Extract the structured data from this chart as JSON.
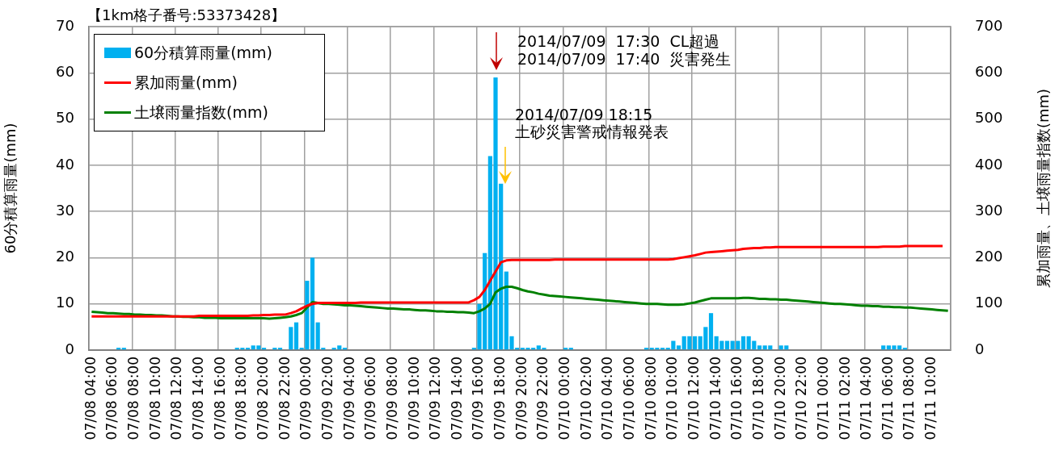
{
  "chart_data": {
    "type": "bar",
    "title": "【1km格子番号:53373428】",
    "ylabel": "60分積算雨量(mm)",
    "y2label": "累加雨量、土壌雨量指数(mm)",
    "annotations": [
      "2014/07/09  17:30  CL超過",
      "2014/07/09  17:40  災害発生",
      "2014/07/09 18:15",
      "土砂災害警戒情報発表"
    ],
    "categories": [
      "07/08 04:00",
      null,
      null,
      null,
      "07/08 06:00",
      null,
      null,
      null,
      "07/08 08:00",
      null,
      null,
      null,
      "07/08 10:00",
      null,
      null,
      null,
      "07/08 12:00",
      null,
      null,
      null,
      "07/08 14:00",
      null,
      null,
      null,
      "07/08 16:00",
      null,
      null,
      null,
      "07/08 18:00",
      null,
      null,
      null,
      "07/08 20:00",
      null,
      null,
      null,
      "07/08 22:00",
      null,
      null,
      null,
      "07/09 00:00",
      null,
      null,
      null,
      "07/09 02:00",
      null,
      null,
      null,
      "07/09 04:00",
      null,
      null,
      null,
      "07/09 06:00",
      null,
      null,
      null,
      "07/09 08:00",
      null,
      null,
      null,
      "07/09 10:00",
      null,
      null,
      null,
      "07/09 12:00",
      null,
      null,
      null,
      "07/09 14:00",
      null,
      null,
      null,
      "07/09 16:00",
      null,
      null,
      null,
      "07/09 18:00",
      null,
      null,
      null,
      "07/09 20:00",
      null,
      null,
      null,
      "07/09 22:00",
      null,
      null,
      null,
      "07/10 00:00",
      null,
      null,
      null,
      "07/10 02:00",
      null,
      null,
      null,
      "07/10 04:00",
      null,
      null,
      null,
      "07/10 06:00",
      null,
      null,
      null,
      "07/10 08:00",
      null,
      null,
      null,
      "07/10 10:00",
      null,
      null,
      null,
      "07/10 12:00",
      null,
      null,
      null,
      "07/10 14:00",
      null,
      null,
      null,
      "07/10 16:00",
      null,
      null,
      null,
      "07/10 18:00",
      null,
      null,
      null,
      "07/10 20:00",
      null,
      null,
      null,
      "07/10 22:00",
      null,
      null,
      null,
      "07/11 00:00",
      null,
      null,
      null,
      "07/11 02:00",
      null,
      null,
      null,
      "07/11 04:00",
      null,
      null,
      null,
      "07/11 06:00",
      null,
      null,
      null,
      "07/11 08:00",
      null,
      null,
      null,
      "07/11 10:00",
      null,
      null,
      null
    ],
    "series": [
      {
        "name": "60分積算雨量(mm)",
        "color": "#00b0f0",
        "values": [
          0,
          0,
          0,
          0,
          0,
          0.5,
          0.5,
          0,
          0,
          0,
          0,
          0,
          0,
          0,
          0,
          0,
          0,
          0,
          0,
          0,
          0,
          0,
          0,
          0,
          0,
          0,
          0,
          0.5,
          0.5,
          0.5,
          1,
          1,
          0.5,
          0,
          0.5,
          0.5,
          0,
          5,
          6,
          0.5,
          15,
          20,
          6,
          0.5,
          0,
          0.5,
          1,
          0.5,
          0,
          0,
          0,
          0,
          0,
          0,
          0,
          0,
          0,
          0,
          0,
          0,
          0,
          0,
          0,
          0,
          0,
          0,
          0,
          0,
          0,
          0,
          0,
          0.5,
          10,
          21,
          42,
          59,
          36,
          17,
          3,
          0.5,
          0.5,
          0.5,
          0.5,
          1,
          0.5,
          0,
          0,
          0,
          0.5,
          0.5,
          0,
          0,
          0,
          0,
          0,
          0,
          0,
          0,
          0,
          0,
          0,
          0,
          0,
          0.5,
          0.5,
          0.5,
          0.5,
          0.5,
          2,
          1,
          3,
          3,
          3,
          3,
          5,
          8,
          3,
          2,
          2,
          2,
          2,
          3,
          3,
          2,
          1,
          1,
          1,
          0,
          1,
          1,
          0,
          0,
          0,
          0,
          0,
          0,
          0,
          0,
          0,
          0,
          0,
          0,
          0,
          0,
          0,
          0,
          0,
          1,
          1,
          1,
          1,
          0.5,
          0,
          0,
          0,
          0,
          0,
          0,
          0,
          0
        ]
      },
      {
        "name": "累加雨量(mm)",
        "type": "line",
        "axis": "y2",
        "color": "#ff0000",
        "values": [
          73,
          73,
          73,
          73,
          73,
          73,
          73,
          73,
          73,
          73,
          73,
          73,
          73,
          73,
          73,
          73,
          73,
          73,
          73,
          73,
          74,
          74,
          74,
          74,
          74,
          74,
          74,
          74,
          74,
          74,
          75,
          75,
          76,
          76,
          77,
          77,
          77,
          80,
          84,
          90,
          96,
          100,
          102,
          102,
          102,
          102,
          102,
          102,
          102,
          102,
          103,
          103,
          103,
          103,
          103,
          103,
          103,
          103,
          103,
          103,
          103,
          103,
          103,
          103,
          103,
          103,
          103,
          103,
          103,
          103,
          103,
          108,
          115,
          130,
          150,
          170,
          190,
          194,
          195,
          195,
          195,
          195,
          195,
          195,
          195,
          195,
          196,
          196,
          196,
          196,
          196,
          196,
          196,
          196,
          196,
          196,
          196,
          196,
          196,
          196,
          196,
          196,
          196,
          196,
          196,
          196,
          196,
          196,
          197,
          199,
          201,
          203,
          205,
          208,
          211,
          212,
          213,
          214,
          215,
          216,
          217,
          219,
          220,
          221,
          221,
          222,
          222,
          223,
          223,
          223,
          223,
          223,
          223,
          223,
          223,
          223,
          223,
          223,
          223,
          223,
          223,
          223,
          223,
          223,
          223,
          223,
          223,
          224,
          224,
          224,
          224,
          225,
          225,
          225,
          225,
          225,
          225,
          225,
          225,
          null
        ]
      },
      {
        "name": "土壌雨量指数(mm)",
        "type": "line",
        "axis": "y2",
        "color": "#008000",
        "values": [
          83,
          82,
          81,
          80,
          80,
          79,
          78,
          78,
          77,
          77,
          76,
          76,
          75,
          75,
          74,
          73,
          73,
          72,
          72,
          71,
          71,
          70,
          70,
          70,
          69,
          69,
          69,
          69,
          69,
          69,
          69,
          69,
          69,
          68,
          69,
          70,
          71,
          73,
          76,
          80,
          92,
          104,
          102,
          100,
          100,
          99,
          98,
          97,
          97,
          96,
          95,
          94,
          93,
          92,
          91,
          90,
          90,
          89,
          88,
          88,
          87,
          86,
          86,
          85,
          84,
          84,
          83,
          83,
          82,
          82,
          81,
          80,
          84,
          90,
          100,
          125,
          133,
          137,
          137,
          134,
          130,
          127,
          125,
          122,
          120,
          118,
          117,
          116,
          115,
          114,
          113,
          112,
          111,
          110,
          109,
          108,
          107,
          106,
          105,
          104,
          103,
          102,
          101,
          100,
          100,
          100,
          99,
          98,
          98,
          98,
          99,
          101,
          103,
          106,
          109,
          112,
          112,
          112,
          112,
          112,
          112,
          113,
          113,
          112,
          111,
          111,
          110,
          110,
          109,
          109,
          108,
          107,
          106,
          105,
          104,
          103,
          102,
          101,
          100,
          100,
          99,
          98,
          97,
          96,
          96,
          95,
          95,
          94,
          94,
          93,
          93,
          92,
          92,
          91,
          90,
          89,
          88,
          87,
          86,
          85
        ]
      }
    ],
    "ylim": [
      0,
      70
    ],
    "yticks": [
      0,
      10,
      20,
      30,
      40,
      50,
      60,
      70
    ],
    "y2lim": [
      0,
      700
    ],
    "y2ticks": [
      0,
      100,
      200,
      300,
      400,
      500,
      600,
      700
    ],
    "grid": true,
    "legend": "top left"
  }
}
